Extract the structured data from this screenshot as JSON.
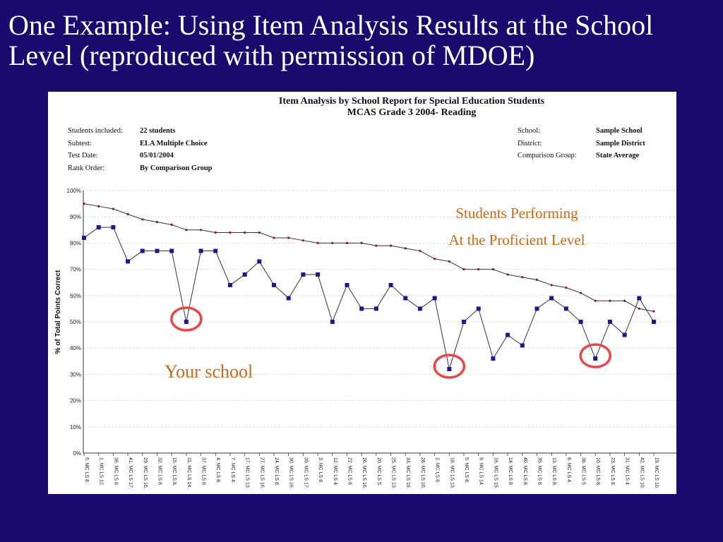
{
  "slide": {
    "title": "One Example:  Using Item Analysis Results at the School Level (reproduced with permission of MDOE)"
  },
  "report": {
    "title_line1": "Item Analysis by School Report for Special Education Students",
    "title_line2": "MCAS Grade 3 2004- Reading",
    "left_info": [
      {
        "label": "Students included:",
        "value": "22 students"
      },
      {
        "label": "Subtest:",
        "value": "ELA Multiple Choice"
      },
      {
        "label": "Test Date:",
        "value": "05/01/2004"
      },
      {
        "label": "Rank Order:",
        "value": "By Comparison Group"
      }
    ],
    "right_info": [
      {
        "label": "School:",
        "value": "Sample School"
      },
      {
        "label": "District:",
        "value": "Sample District"
      },
      {
        "label": "Comparison Group:",
        "value": "State Average"
      }
    ]
  },
  "annotations": {
    "proficient_line1": "Students Performing",
    "proficient_line2": "At the Proficient Level",
    "your_school": "Your school",
    "highlight_color": "#e8474a",
    "text_color": "#c86a1a"
  },
  "colors": {
    "background": "#1a0a6e",
    "school_marker": "#1a1a8c",
    "comparison_marker": "#8b1a1a",
    "line": "#333333"
  },
  "chart_data": {
    "type": "line",
    "ylabel": "% of Total Points Correct",
    "ylim": [
      0,
      100
    ],
    "yticks": [
      "0%",
      "10%",
      "20%",
      "30%",
      "40%",
      "50%",
      "60%",
      "70%",
      "80%",
      "90%",
      "100%"
    ],
    "grid": true,
    "categories": [
      "6. MC LS 8.",
      "1. MC LS 12.",
      "36. MC LS 8.",
      "41. MC LS 17.",
      "29. MC LS 16.",
      "32. MC LS 8.",
      "15. MC LS 8.",
      "11. MC LS 14.",
      "37. MC LS 8.",
      "4. MC LS 8.",
      "7. MC LS 4.",
      "17. MC LS 13.",
      "27. MC LS 16.",
      "24. MC LS 8.",
      "30. MC LS 16.",
      "39. MC LS 17.",
      "3. MC LS 8.",
      "12. MC LS 4.",
      "22. MC LS 8.",
      "26. MC LS 16.",
      "20. MC LS 5.",
      "25. MC LS 13.",
      "33. MC LS 16.",
      "28. MC LS 16.",
      "2. MC LS 8.",
      "18. MC LS 13.",
      "5. MC LS 8.",
      "9. MC LS 14.",
      "16. MC LS 15.",
      "14. MC LS 8.",
      "40. MC LS 8.",
      "35. MC LS 8.",
      "13. MC LS 8.",
      "8. MC LS 4.",
      "38. MC LS 5.",
      "10. MC LS 8.",
      "23. MC LS 8.",
      "31. MC LS 4.",
      "42. MC LS 10.",
      "19. MC LS 10."
    ],
    "series": [
      {
        "name": "",
        "values": [
          82,
          86,
          86,
          73,
          77,
          77,
          77,
          50,
          77,
          77,
          64,
          68,
          73,
          64,
          59,
          68,
          68,
          50,
          64,
          55,
          55,
          64,
          59,
          55,
          59,
          32,
          50,
          55,
          36,
          45,
          41,
          55,
          59,
          55,
          50,
          36,
          50,
          45,
          59,
          50
        ]
      },
      {
        "name": "",
        "values": [
          95,
          94,
          93,
          91,
          89,
          88,
          87,
          85,
          85,
          84,
          84,
          84,
          84,
          82,
          82,
          81,
          80,
          80,
          80,
          80,
          79,
          79,
          78,
          77,
          74,
          73,
          70,
          70,
          70,
          68,
          67,
          66,
          64,
          63,
          61,
          58,
          58,
          58,
          55,
          54
        ]
      }
    ],
    "highlighted_indices": [
      7,
      25,
      35
    ]
  }
}
